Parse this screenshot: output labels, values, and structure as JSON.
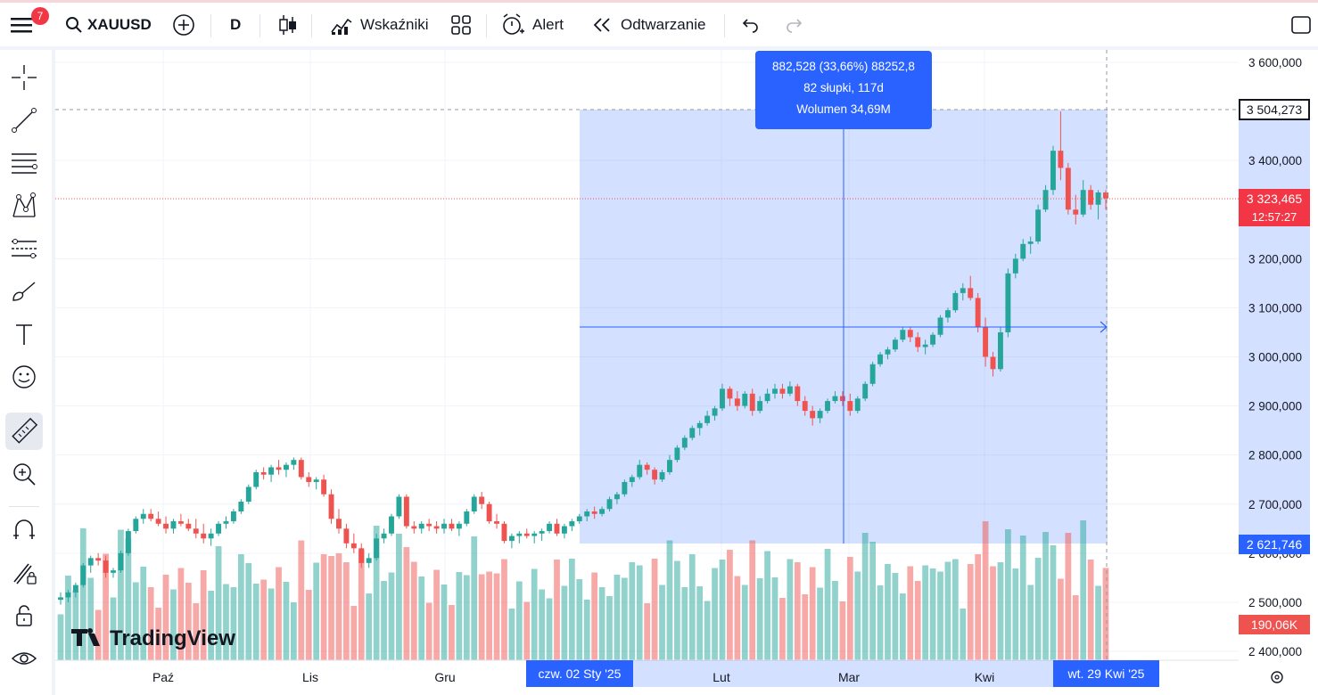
{
  "topbar": {
    "menu_badge": "7",
    "symbol": "XAUUSD",
    "interval": "D",
    "indicators_label": "Wskaźniki",
    "alert_label": "Alert",
    "replay_label": "Odtwarzanie"
  },
  "measure": {
    "line1": "882,528 (33,66%) 88252,8",
    "line2": "82 słupki, 117d",
    "line3": "Wolumen 34,69M"
  },
  "price_axis": {
    "ticks": [
      "3 600,000",
      "3 400,000",
      "3 200,000",
      "3 100,000",
      "3 000,000",
      "2 900,000",
      "2 800,000",
      "2 700,000",
      "2 600,000",
      "2 500,000",
      "2 400,000"
    ],
    "measure_high": "3 504,273",
    "measure_low": "2 621,746",
    "last_price": "3 323,465",
    "countdown": "12:57:27",
    "volume_label": "190,06K"
  },
  "time_axis": {
    "months": [
      "Paź",
      "Lis",
      "Gru",
      "Lut",
      "Mar",
      "Kwi"
    ],
    "range_start": "czw. 02 Sty '25",
    "range_end": "wt. 29 Kwi '25"
  },
  "watermark": "TradingView",
  "colors": {
    "up": "#26a69a",
    "down": "#ef5350",
    "accent": "#2962ff"
  },
  "chart_data": {
    "type": "candlestick",
    "ylim": [
      2380000,
      3640000
    ],
    "ohlc": [
      [
        2505,
        2520,
        2495,
        2510
      ],
      [
        2510,
        2525,
        2500,
        2520
      ],
      [
        2520,
        2540,
        2510,
        2535
      ],
      [
        2535,
        2580,
        2530,
        2575
      ],
      [
        2575,
        2595,
        2560,
        2590
      ],
      [
        2590,
        2600,
        2575,
        2585
      ],
      [
        2585,
        2595,
        2550,
        2560
      ],
      [
        2560,
        2570,
        2550,
        2565
      ],
      [
        2565,
        2605,
        2560,
        2600
      ],
      [
        2600,
        2650,
        2595,
        2645
      ],
      [
        2645,
        2675,
        2640,
        2670
      ],
      [
        2670,
        2690,
        2660,
        2680
      ],
      [
        2680,
        2690,
        2665,
        2670
      ],
      [
        2670,
        2685,
        2655,
        2660
      ],
      [
        2660,
        2675,
        2640,
        2650
      ],
      [
        2650,
        2670,
        2640,
        2665
      ],
      [
        2665,
        2680,
        2655,
        2660
      ],
      [
        2660,
        2670,
        2645,
        2650
      ],
      [
        2650,
        2670,
        2630,
        2640
      ],
      [
        2640,
        2660,
        2620,
        2630
      ],
      [
        2630,
        2650,
        2615,
        2640
      ],
      [
        2640,
        2665,
        2635,
        2660
      ],
      [
        2660,
        2675,
        2650,
        2665
      ],
      [
        2665,
        2690,
        2660,
        2685
      ],
      [
        2685,
        2710,
        2680,
        2705
      ],
      [
        2705,
        2740,
        2700,
        2735
      ],
      [
        2735,
        2770,
        2730,
        2765
      ],
      [
        2765,
        2775,
        2750,
        2760
      ],
      [
        2760,
        2780,
        2745,
        2775
      ],
      [
        2775,
        2790,
        2760,
        2770
      ],
      [
        2770,
        2785,
        2755,
        2780
      ],
      [
        2780,
        2795,
        2770,
        2790
      ],
      [
        2790,
        2795,
        2750,
        2755
      ],
      [
        2755,
        2765,
        2735,
        2745
      ],
      [
        2745,
        2755,
        2730,
        2750
      ],
      [
        2750,
        2760,
        2715,
        2720
      ],
      [
        2720,
        2730,
        2660,
        2670
      ],
      [
        2670,
        2690,
        2640,
        2650
      ],
      [
        2650,
        2660,
        2610,
        2620
      ],
      [
        2620,
        2640,
        2600,
        2610
      ],
      [
        2610,
        2620,
        2570,
        2580
      ],
      [
        2580,
        2600,
        2570,
        2590
      ],
      [
        2590,
        2640,
        2585,
        2630
      ],
      [
        2630,
        2650,
        2620,
        2640
      ],
      [
        2640,
        2680,
        2635,
        2675
      ],
      [
        2675,
        2720,
        2670,
        2715
      ],
      [
        2715,
        2720,
        2650,
        2655
      ],
      [
        2655,
        2665,
        2640,
        2650
      ],
      [
        2650,
        2665,
        2640,
        2660
      ],
      [
        2660,
        2670,
        2645,
        2655
      ],
      [
        2655,
        2665,
        2640,
        2650
      ],
      [
        2650,
        2670,
        2640,
        2660
      ],
      [
        2660,
        2670,
        2645,
        2650
      ],
      [
        2650,
        2665,
        2635,
        2660
      ],
      [
        2660,
        2690,
        2655,
        2685
      ],
      [
        2685,
        2720,
        2680,
        2715
      ],
      [
        2715,
        2725,
        2690,
        2700
      ],
      [
        2700,
        2705,
        2660,
        2665
      ],
      [
        2665,
        2680,
        2650,
        2660
      ],
      [
        2660,
        2665,
        2620,
        2625
      ],
      [
        2625,
        2640,
        2610,
        2635
      ],
      [
        2635,
        2645,
        2620,
        2640
      ],
      [
        2640,
        2650,
        2630,
        2635
      ],
      [
        2635,
        2645,
        2620,
        2640
      ],
      [
        2640,
        2650,
        2625,
        2645
      ],
      [
        2645,
        2665,
        2640,
        2660
      ],
      [
        2660,
        2670,
        2635,
        2640
      ],
      [
        2640,
        2660,
        2630,
        2655
      ],
      [
        2655,
        2670,
        2645,
        2665
      ],
      [
        2665,
        2680,
        2660,
        2675
      ],
      [
        2675,
        2690,
        2665,
        2685
      ],
      [
        2685,
        2695,
        2670,
        2680
      ],
      [
        2680,
        2695,
        2675,
        2690
      ],
      [
        2690,
        2715,
        2685,
        2710
      ],
      [
        2710,
        2725,
        2700,
        2720
      ],
      [
        2720,
        2750,
        2715,
        2745
      ],
      [
        2745,
        2760,
        2735,
        2755
      ],
      [
        2755,
        2790,
        2750,
        2780
      ],
      [
        2780,
        2785,
        2760,
        2770
      ],
      [
        2770,
        2775,
        2740,
        2750
      ],
      [
        2750,
        2770,
        2745,
        2765
      ],
      [
        2765,
        2800,
        2760,
        2790
      ],
      [
        2790,
        2820,
        2785,
        2815
      ],
      [
        2815,
        2840,
        2810,
        2835
      ],
      [
        2835,
        2860,
        2830,
        2855
      ],
      [
        2855,
        2870,
        2840,
        2865
      ],
      [
        2865,
        2890,
        2860,
        2880
      ],
      [
        2880,
        2900,
        2870,
        2895
      ],
      [
        2895,
        2945,
        2890,
        2935
      ],
      [
        2935,
        2940,
        2900,
        2915
      ],
      [
        2915,
        2930,
        2890,
        2900
      ],
      [
        2900,
        2930,
        2895,
        2925
      ],
      [
        2925,
        2935,
        2880,
        2890
      ],
      [
        2890,
        2920,
        2885,
        2910
      ],
      [
        2910,
        2935,
        2905,
        2925
      ],
      [
        2925,
        2945,
        2915,
        2935
      ],
      [
        2935,
        2945,
        2915,
        2925
      ],
      [
        2925,
        2950,
        2920,
        2940
      ],
      [
        2940,
        2945,
        2900,
        2910
      ],
      [
        2910,
        2920,
        2880,
        2890
      ],
      [
        2890,
        2900,
        2860,
        2875
      ],
      [
        2875,
        2895,
        2865,
        2890
      ],
      [
        2890,
        2915,
        2885,
        2910
      ],
      [
        2910,
        2930,
        2905,
        2920
      ],
      [
        2920,
        2930,
        2900,
        2910
      ],
      [
        2910,
        2925,
        2880,
        2890
      ],
      [
        2890,
        2920,
        2885,
        2915
      ],
      [
        2915,
        2950,
        2910,
        2945
      ],
      [
        2945,
        2990,
        2940,
        2985
      ],
      [
        2985,
        3010,
        2980,
        3005
      ],
      [
        3005,
        3020,
        2995,
        3015
      ],
      [
        3015,
        3040,
        3010,
        3035
      ],
      [
        3035,
        3060,
        3030,
        3055
      ],
      [
        3055,
        3060,
        3030,
        3040
      ],
      [
        3040,
        3050,
        3010,
        3020
      ],
      [
        3020,
        3035,
        3005,
        3025
      ],
      [
        3025,
        3050,
        3020,
        3045
      ],
      [
        3045,
        3085,
        3040,
        3080
      ],
      [
        3080,
        3100,
        3070,
        3095
      ],
      [
        3095,
        3135,
        3090,
        3130
      ],
      [
        3130,
        3150,
        3115,
        3140
      ],
      [
        3140,
        3165,
        3115,
        3120
      ],
      [
        3120,
        3130,
        3050,
        3060
      ],
      [
        3060,
        3080,
        2980,
        3000
      ],
      [
        3000,
        3010,
        2960,
        2975
      ],
      [
        2975,
        3060,
        2970,
        3050
      ],
      [
        3050,
        3180,
        3040,
        3170
      ],
      [
        3170,
        3210,
        3160,
        3200
      ],
      [
        3200,
        3240,
        3195,
        3230
      ],
      [
        3230,
        3245,
        3210,
        3235
      ],
      [
        3235,
        3310,
        3230,
        3300
      ],
      [
        3300,
        3350,
        3295,
        3340
      ],
      [
        3340,
        3430,
        3330,
        3420
      ],
      [
        3420,
        3500,
        3360,
        3385
      ],
      [
        3385,
        3395,
        3290,
        3300
      ],
      [
        3300,
        3330,
        3270,
        3290
      ],
      [
        3290,
        3360,
        3285,
        3340
      ],
      [
        3340,
        3350,
        3300,
        3310
      ],
      [
        3310,
        3340,
        3280,
        3335
      ],
      [
        3335,
        3340,
        3300,
        3323
      ]
    ],
    "volume_scale_k": 190.06
  }
}
